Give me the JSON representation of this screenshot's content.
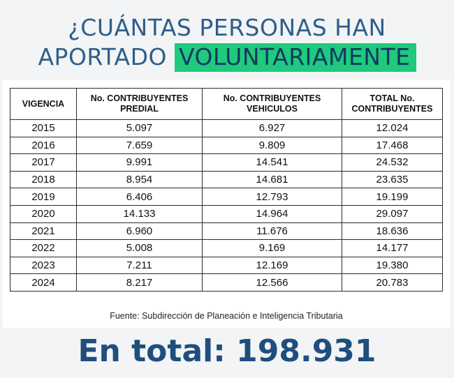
{
  "title": {
    "line1": "¿CUÁNTAS PERSONAS HAN",
    "line2_prefix": "APORTADO",
    "line2_highlight": "VOLUNTARIAMENTE",
    "highlight_color": "#1fc97d",
    "text_color": "#2f5e8a"
  },
  "table": {
    "headers": [
      "VIGENCIA",
      "No. CONTRIBUYENTES PREDIAL",
      "No. CONTRIBUYENTES VEHICULOS",
      "TOTAL No. CONTRIBUYENTES"
    ],
    "rows": [
      [
        "2015",
        "5.097",
        "6.927",
        "12.024"
      ],
      [
        "2016",
        "7.659",
        "9.809",
        "17.468"
      ],
      [
        "2017",
        "9.991",
        "14.541",
        "24.532"
      ],
      [
        "2018",
        "8.954",
        "14.681",
        "23.635"
      ],
      [
        "2019",
        "6.406",
        "12.793",
        "19.199"
      ],
      [
        "2020",
        "14.133",
        "14.964",
        "29.097"
      ],
      [
        "2021",
        "6.960",
        "11.676",
        "18.636"
      ],
      [
        "2022",
        "5.008",
        "9.169",
        "14.177"
      ],
      [
        "2023",
        "7.211",
        "12.169",
        "19.380"
      ],
      [
        "2024",
        "8.217",
        "12.566",
        "20.783"
      ]
    ]
  },
  "source": "Fuente: Subdirección de Planeación e Inteligencia Tributaria",
  "total": "En total: 198.931",
  "total_color": "#1f4e7d"
}
